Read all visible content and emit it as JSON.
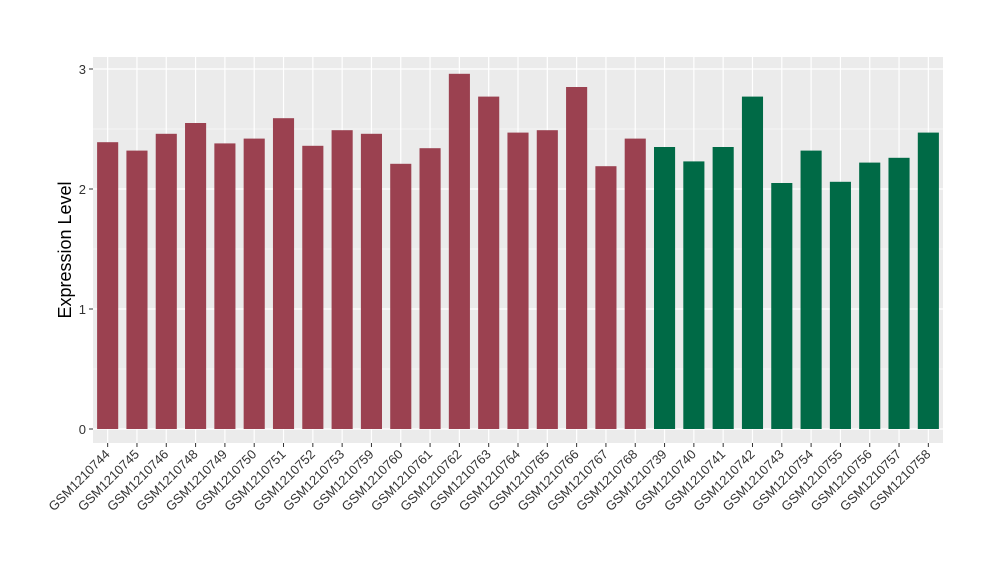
{
  "chart_data": {
    "type": "bar",
    "title": "",
    "xlabel": "",
    "ylabel": "Expression Level",
    "ylim": [
      0,
      3.1
    ],
    "yticks": [
      0,
      1,
      2,
      3
    ],
    "grid": true,
    "legend": "none",
    "colors": {
      "group1": "#9b4150",
      "group2": "#006a46",
      "panel": "#ebebeb",
      "grid": "#ffffff"
    },
    "categories": [
      "GSM1210744",
      "GSM1210745",
      "GSM1210746",
      "GSM1210748",
      "GSM1210749",
      "GSM1210750",
      "GSM1210751",
      "GSM1210752",
      "GSM1210753",
      "GSM1210759",
      "GSM1210760",
      "GSM1210761",
      "GSM1210762",
      "GSM1210763",
      "GSM1210764",
      "GSM1210765",
      "GSM1210766",
      "GSM1210767",
      "GSM1210768",
      "GSM1210739",
      "GSM1210740",
      "GSM1210741",
      "GSM1210742",
      "GSM1210743",
      "GSM1210754",
      "GSM1210755",
      "GSM1210756",
      "GSM1210757",
      "GSM1210758"
    ],
    "values": [
      2.39,
      2.32,
      2.46,
      2.55,
      2.38,
      2.42,
      2.59,
      2.36,
      2.49,
      2.46,
      2.21,
      2.34,
      2.96,
      2.77,
      2.47,
      2.49,
      2.85,
      2.19,
      2.42,
      2.35,
      2.23,
      2.35,
      2.77,
      2.05,
      2.32,
      2.06,
      2.22,
      2.26,
      2.47
    ],
    "groups": [
      1,
      1,
      1,
      1,
      1,
      1,
      1,
      1,
      1,
      1,
      1,
      1,
      1,
      1,
      1,
      1,
      1,
      1,
      1,
      2,
      2,
      2,
      2,
      2,
      2,
      2,
      2,
      2,
      2
    ]
  }
}
